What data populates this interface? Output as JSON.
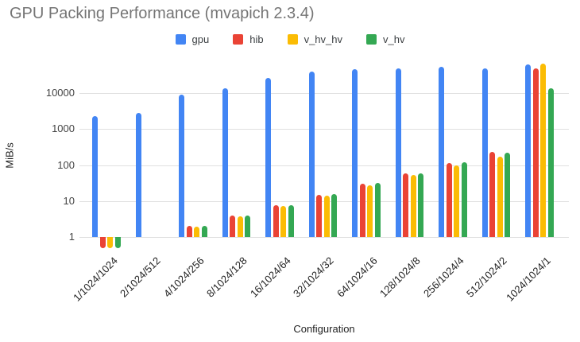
{
  "title": "GPU Packing Performance (mvapich 2.3.4)",
  "axes": {
    "x_title": "Configuration",
    "y_title": "MiB/s"
  },
  "chart_data": {
    "type": "bar",
    "title": "GPU Packing Performance (mvapich 2.3.4)",
    "xlabel": "Configuration",
    "ylabel": "MiB/s",
    "y_scale": "log",
    "y_ticks": [
      1,
      10,
      100,
      1000,
      10000
    ],
    "ylim": [
      0.47,
      74000
    ],
    "grid": true,
    "legend_position": "top",
    "categories": [
      "1/1024/1024",
      "2/1024/512",
      "4/1024/256",
      "8/1024/128",
      "16/1024/64",
      "32/1024/32",
      "64/1024/16",
      "128/1024/8",
      "256/1024/4",
      "512/1024/2",
      "1024/1024/1"
    ],
    "series": [
      {
        "name": "gpu",
        "color": "#4285F4",
        "values": [
          2300,
          2800,
          8900,
          14000,
          27000,
          39000,
          46000,
          49000,
          53000,
          49000,
          62000
        ]
      },
      {
        "name": "hib",
        "color": "#EA4335",
        "values": [
          0.5,
          1,
          2,
          3.9,
          7.5,
          15,
          31,
          58,
          115,
          235,
          50000
        ]
      },
      {
        "name": "v_hv_hv",
        "color": "#FBBC04",
        "values": [
          0.5,
          1,
          1.9,
          3.8,
          7.3,
          14,
          27,
          52,
          100,
          170,
          65000
        ]
      },
      {
        "name": "v_hv",
        "color": "#34A853",
        "values": [
          0.5,
          1,
          2,
          4,
          7.7,
          15.5,
          32,
          60,
          120,
          225,
          14000
        ]
      }
    ]
  }
}
